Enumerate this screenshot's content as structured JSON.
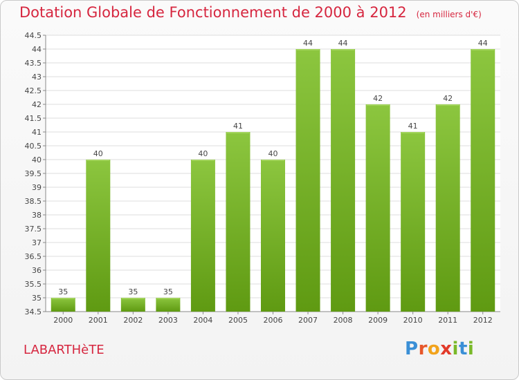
{
  "title": "Dotation Globale de Fonctionnement de 2000 à 2012",
  "unit": "(en milliers d'€)",
  "location": "LABARTHèTE",
  "brand": {
    "letters": [
      "P",
      "r",
      "o",
      "x",
      "i",
      "t",
      "i"
    ],
    "colors": [
      "#3a8fd6",
      "#e7572a",
      "#f2a31c",
      "#e23a2a",
      "#7ab929",
      "#3a8fd6",
      "#7ab929"
    ]
  },
  "colors": {
    "accent": "#d6263f",
    "bar": "#8cc63f",
    "bar_dark": "#5f9a12"
  },
  "chart_data": {
    "type": "bar",
    "categories": [
      "2000",
      "2001",
      "2002",
      "2003",
      "2004",
      "2005",
      "2006",
      "2007",
      "2008",
      "2009",
      "2010",
      "2011",
      "2012"
    ],
    "values": [
      35,
      40,
      35,
      35,
      40,
      41,
      40,
      44,
      44,
      42,
      41,
      42,
      44
    ],
    "data_labels": [
      "35",
      "40",
      "35",
      "35",
      "40",
      "41",
      "40",
      "44",
      "44",
      "42",
      "41",
      "42",
      "44"
    ],
    "y_ticks": [
      "34.5",
      "35",
      "35.5",
      "36",
      "36.5",
      "37",
      "37.5",
      "38",
      "38.5",
      "39",
      "39.5",
      "40",
      "40.5",
      "41",
      "41.5",
      "42",
      "42.5",
      "43",
      "43.5",
      "44",
      "44.5"
    ],
    "ylim": [
      34.5,
      44.5
    ],
    "grid": true
  }
}
